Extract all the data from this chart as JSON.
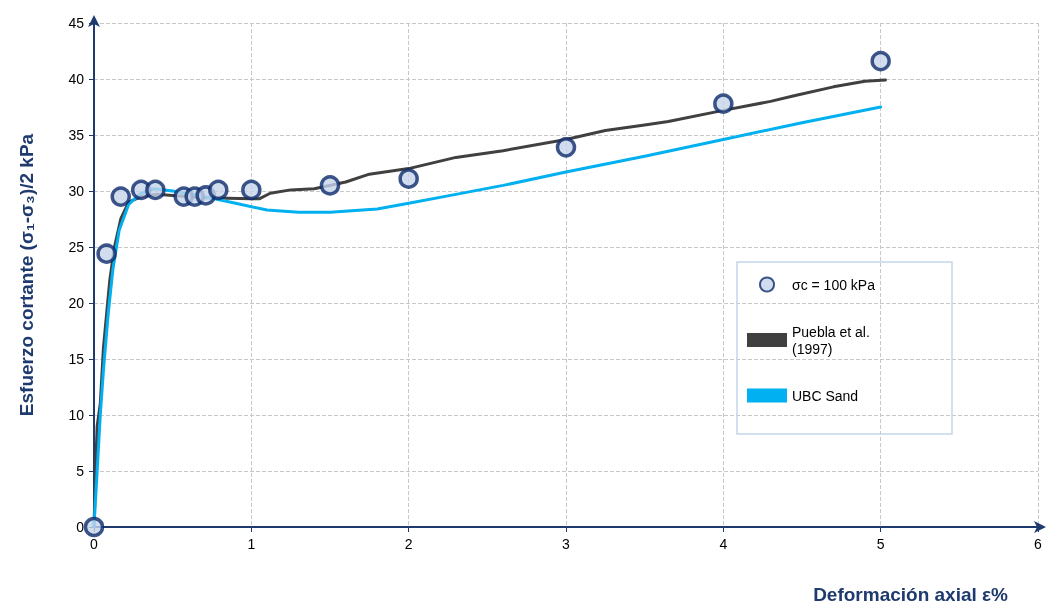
{
  "chart_data": {
    "type": "line",
    "xlabel": "Deformación axial ε%",
    "ylabel": "Esfuerzo cortante (σ₁-σ₃)/2 kPa",
    "xlim": [
      0,
      6
    ],
    "xticks": [
      0,
      1,
      2,
      3,
      4,
      5,
      6
    ],
    "ylim": [
      0,
      45
    ],
    "yticks": [
      0,
      5,
      10,
      15,
      20,
      25,
      30,
      35,
      40,
      45
    ],
    "grid": true,
    "legend": "right",
    "series": [
      {
        "name": "σc = 100 kPa",
        "type": "scatter",
        "marker": "circle",
        "color": "#c5d5ea",
        "x": [
          0,
          0.08,
          0.17,
          0.3,
          0.39,
          0.57,
          0.64,
          0.71,
          0.79,
          1.0,
          1.5,
          2.0,
          3.0,
          4.0,
          5.0
        ],
        "values": [
          0,
          24.4,
          29.5,
          30.1,
          30.1,
          29.5,
          29.5,
          29.6,
          30.1,
          30.1,
          30.5,
          31.1,
          33.9,
          37.8,
          41.6
        ]
      },
      {
        "name": "Puebla et al. (1997)",
        "marker": "none",
        "color": "#404040",
        "x": [
          0,
          0.01,
          0.02,
          0.04,
          0.06,
          0.08,
          0.1,
          0.13,
          0.17,
          0.22,
          0.3,
          0.4,
          0.5,
          0.7,
          1.0,
          1.05,
          1.12,
          1.25,
          1.4,
          1.6,
          1.75,
          2.0,
          2.3,
          2.6,
          3.0,
          3.25,
          3.5,
          3.65,
          4.0,
          4.3,
          4.45,
          4.7,
          4.9,
          5.03
        ],
        "values": [
          0,
          5,
          9,
          11,
          16,
          19,
          22,
          25,
          27.5,
          29,
          29.5,
          29.7,
          29.6,
          29.4,
          29.3,
          29.3,
          29.8,
          30.1,
          30.2,
          30.8,
          31.5,
          32,
          33,
          33.6,
          34.6,
          35.4,
          35.9,
          36.2,
          37.2,
          38,
          38.5,
          39.3,
          39.8,
          39.9
        ]
      },
      {
        "name": "UBC Sand",
        "marker": "none",
        "color": "#00b0f0",
        "x": [
          0,
          0.02,
          0.04,
          0.06,
          0.09,
          0.12,
          0.16,
          0.22,
          0.3,
          0.38,
          0.5,
          0.7,
          0.9,
          1.1,
          1.3,
          1.5,
          1.8,
          2.0,
          2.3,
          2.6,
          3.0,
          3.5,
          4.0,
          4.5,
          5.0
        ],
        "values": [
          0,
          5,
          10,
          14,
          19,
          23,
          26.5,
          28.8,
          29.8,
          30.2,
          30,
          29.5,
          28.9,
          28.3,
          28.1,
          28.1,
          28.4,
          28.9,
          29.7,
          30.5,
          31.7,
          33.1,
          34.6,
          36.1,
          37.5
        ]
      }
    ]
  }
}
